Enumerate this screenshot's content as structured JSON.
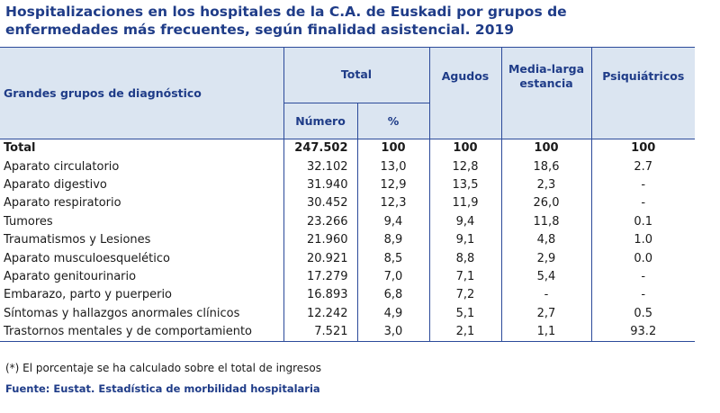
{
  "title_line1": "Hospitalizaciones en los hospitales  de la C.A. de Euskadi por grupos de",
  "title_line2": "enfermedades más frecuentes, según finalidad asistencial. 2019",
  "header": {
    "group": "Grandes grupos de diagnóstico",
    "total": "Total",
    "agudos": "Agudos",
    "media_larga_1": "Media-larga",
    "media_larga_2": "estancia",
    "psiquiatricos": "Psiquiátricos",
    "numero": "Número",
    "pct": "%"
  },
  "total_row": {
    "label": "Total",
    "numero": "247.502",
    "pct": "100",
    "agudos": "100",
    "media": "100",
    "psiq": "100"
  },
  "rows": [
    {
      "label": "Aparato circulatorio",
      "numero": "32.102",
      "pct": "13,0",
      "agudos": "12,8",
      "media": "18,6",
      "psiq": "2.7"
    },
    {
      "label": "Aparato digestivo",
      "numero": "31.940",
      "pct": "12,9",
      "agudos": "13,5",
      "media": "2,3",
      "psiq": "-"
    },
    {
      "label": "Aparato respiratorio",
      "numero": "30.452",
      "pct": "12,3",
      "agudos": "11,9",
      "media": "26,0",
      "psiq": "-"
    },
    {
      "label": "Tumores",
      "numero": "23.266",
      "pct": "9,4",
      "agudos": "9,4",
      "media": "11,8",
      "psiq": "0.1"
    },
    {
      "label": "Traumatismos y Lesiones",
      "numero": "21.960",
      "pct": "8,9",
      "agudos": "9,1",
      "media": "4,8",
      "psiq": "1.0"
    },
    {
      "label": "Aparato musculoesquelético",
      "numero": "20.921",
      "pct": "8,5",
      "agudos": "8,8",
      "media": "2,9",
      "psiq": "0.0"
    },
    {
      "label": "Aparato genitourinario",
      "numero": "17.279",
      "pct": "7,0",
      "agudos": "7,1",
      "media": "5,4",
      "psiq": "-"
    },
    {
      "label": "Embarazo, parto y puerperio",
      "numero": "16.893",
      "pct": "6,8",
      "agudos": "7,2",
      "media": "-",
      "psiq": "-"
    },
    {
      "label": "Síntomas y hallazgos anormales clínicos",
      "numero": "12.242",
      "pct": "4,9",
      "agudos": "5,1",
      "media": "2,7",
      "psiq": "0.5"
    },
    {
      "label": "Trastornos mentales y de comportamiento",
      "numero": "7.521",
      "pct": "3,0",
      "agudos": "2,1",
      "media": "1,1",
      "psiq": "93.2"
    }
  ],
  "note": "(*) El porcentaje se ha calculado sobre el total de ingresos",
  "source": "Fuente: Eustat. Estadística de morbilidad hospitalaria"
}
